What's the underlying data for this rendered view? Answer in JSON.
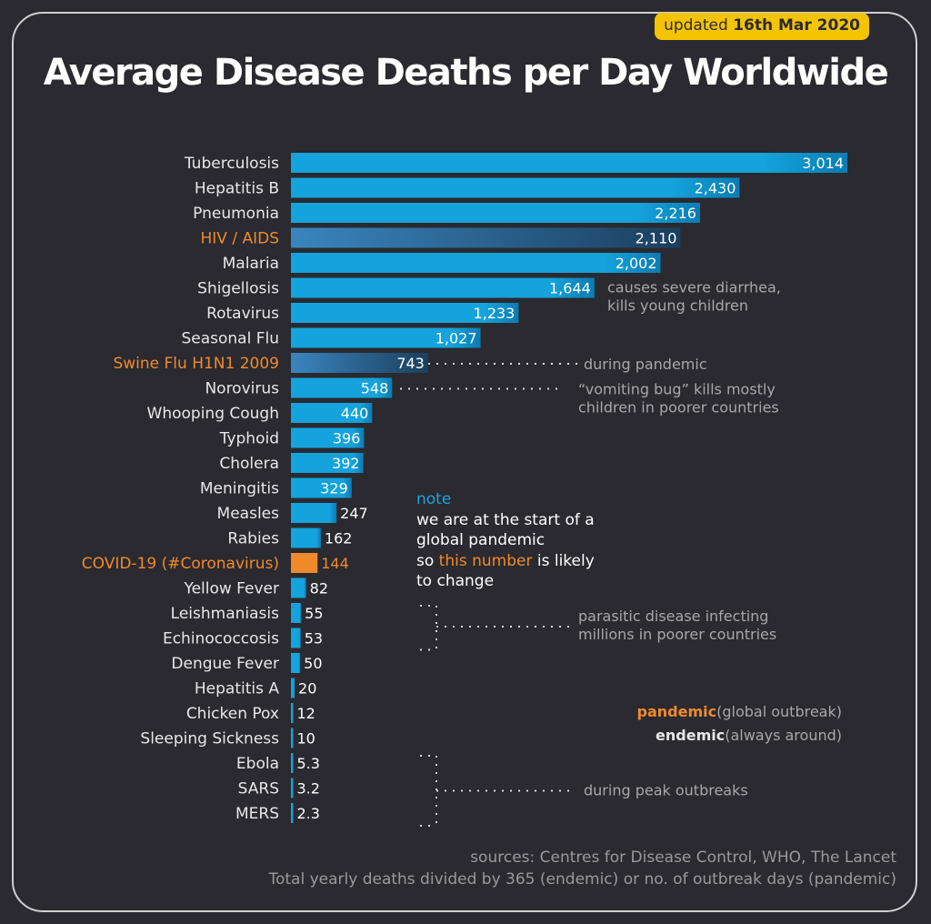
{
  "badge": {
    "prefix": "updated",
    "date": "16th Mar 2020"
  },
  "title": "Average Disease Deaths per Day Worldwide",
  "colors": {
    "background": "#2a2a30",
    "bar": "#14a3dc",
    "bar_dark": "#0a7cb3",
    "pandemic_label": "#f08a2b",
    "covid_bar": "#f08a2b",
    "label": "#e8e8e8",
    "annotation": "#a8a8a8"
  },
  "chart_data": {
    "type": "bar",
    "orientation": "horizontal",
    "title": "Average Disease Deaths per Day Worldwide",
    "categories": [
      "Tuberculosis",
      "Hepatitis B",
      "Pneumonia",
      "HIV / AIDS",
      "Malaria",
      "Shigellosis",
      "Rotavirus",
      "Seasonal Flu",
      "Swine Flu H1N1 2009",
      "Norovirus",
      "Whooping Cough",
      "Typhoid",
      "Cholera",
      "Meningitis",
      "Measles",
      "Rabies",
      "COVID-19 (#Coronavirus)",
      "Yellow Fever",
      "Leishmaniasis",
      "Echinococcosis",
      "Dengue Fever",
      "Hepatitis A",
      "Chicken Pox",
      "Sleeping Sickness",
      "Ebola",
      "SARS",
      "MERS"
    ],
    "values": [
      3014,
      2430,
      2216,
      2110,
      2002,
      1644,
      1233,
      1027,
      743,
      548,
      440,
      396,
      392,
      329,
      247,
      162,
      144,
      82,
      55,
      53,
      50,
      20,
      12,
      10,
      5.3,
      3.2,
      2.3
    ],
    "value_labels": [
      "3,014",
      "2,430",
      "2,216",
      "2,110",
      "2,002",
      "1,644",
      "1,233",
      "1,027",
      "743",
      "548",
      "440",
      "396",
      "392",
      "329",
      "247",
      "162",
      "144",
      "82",
      "55",
      "53",
      "50",
      "20",
      "12",
      "10",
      "5.3",
      "3.2",
      "2.3"
    ],
    "highlighted": {
      "HIV / AIDS": "pandemic",
      "Swine Flu H1N1 2009": "pandemic",
      "COVID-19 (#Coronavirus)": "pandemic-current"
    },
    "xlim": [
      0,
      3014
    ],
    "grid": false
  },
  "annotations": {
    "shigellosis": [
      "causes severe diarrhea,",
      "kills young children"
    ],
    "swine_flu": "during pandemic",
    "norovirus": [
      "“vomiting bug” kills mostly",
      "children in poorer countries"
    ],
    "parasitic": [
      "parasitic disease infecting",
      "millions in poorer countries"
    ],
    "peak": "during peak outbreaks"
  },
  "note": {
    "head": "note",
    "line1": "we are at the start of a",
    "line2": "global pandemic",
    "line3_pre": "so ",
    "line3_hl": "this number",
    "line3_post": " is likely",
    "line4": "to change"
  },
  "legend": {
    "pandemic_term": "pandemic",
    "pandemic_desc": "(global outbreak)",
    "endemic_term": "endemic",
    "endemic_desc": "(always around)"
  },
  "sources": {
    "line1": "sources: Centres for Disease Control, WHO, The Lancet",
    "line2": "Total yearly deaths divided by 365 (endemic) or no. of outbreak days (pandemic)"
  }
}
